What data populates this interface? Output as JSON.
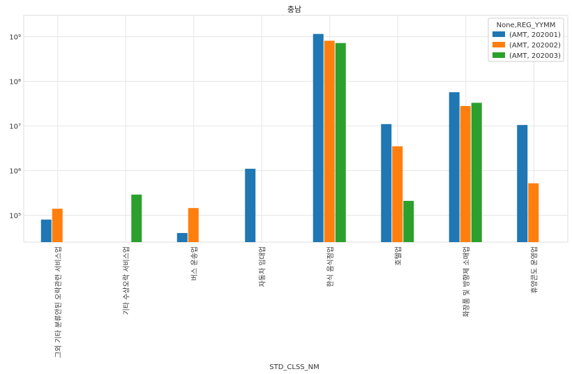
{
  "chart_data": {
    "type": "bar",
    "title": "충남",
    "xlabel": "STD_CLSS_NM",
    "ylabel": "",
    "yscale": "log",
    "ylim": [
      25000,
      3000000000
    ],
    "yticks": [
      {
        "value": 100000,
        "label": "10⁵"
      },
      {
        "value": 1000000,
        "label": "10⁶"
      },
      {
        "value": 10000000,
        "label": "10⁷"
      },
      {
        "value": 100000000,
        "label": "10⁸"
      },
      {
        "value": 1000000000,
        "label": "10⁹"
      }
    ],
    "grid": true,
    "legend_title": "None,REG_YYMM",
    "legend_position": "top-right",
    "categories": [
      "그외 기타 분류안된 오락관련 서비스업",
      "기타 수상오락 서비스업",
      "버스 운송업",
      "자동차 임대업",
      "한식 음식점업",
      "호텔업",
      "화장품 및 방향제 소매업",
      "휴양콘도 운영업"
    ],
    "series": [
      {
        "name": "(AMT, 202001)",
        "color": "#1f77b4",
        "values": [
          80000,
          null,
          40000,
          1100000,
          1150000000,
          11000000,
          null,
          10500000
        ]
      },
      {
        "name": "(AMT, 202002)",
        "color": "#ff7f0e",
        "values": [
          140000,
          null,
          145000,
          null,
          810000000,
          3500000,
          null,
          520000
        ]
      },
      {
        "name": "(AMT, 202003)",
        "color": "#2ca02c",
        "values": [
          null,
          290000,
          null,
          null,
          720000000,
          210000,
          null,
          null
        ]
      }
    ],
    "values_note_cat6": [
      57000000,
      28000000,
      33000000
    ]
  }
}
